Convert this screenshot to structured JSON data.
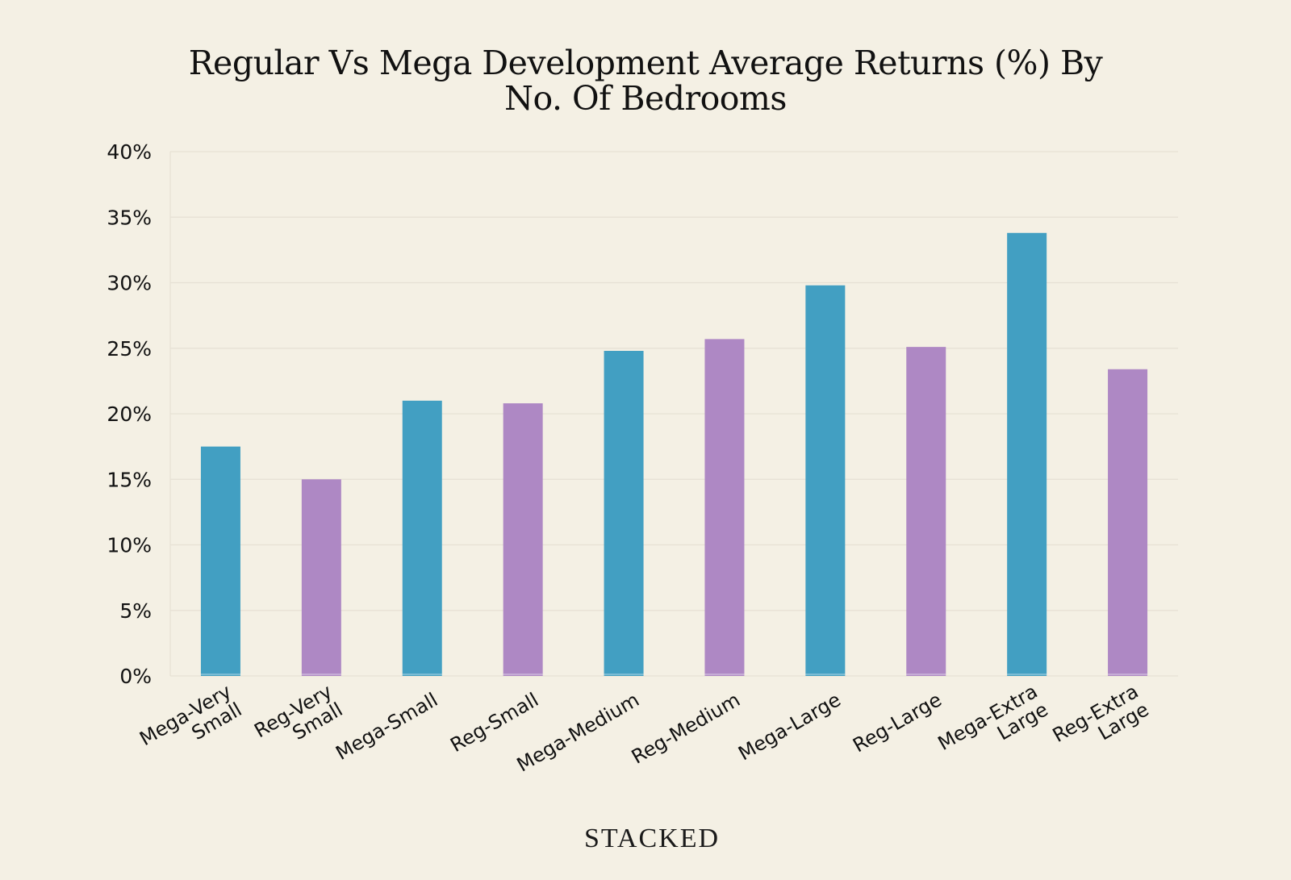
{
  "brand": "STACKED",
  "colors": {
    "background": "#f4f0e4",
    "mega": "#429fc2",
    "reg": "#ae88c4"
  },
  "chart_data": {
    "type": "bar",
    "title_lines": [
      "Regular Vs Mega Development Average Returns (%) By",
      "No. Of Bedrooms"
    ],
    "xlabel": "",
    "ylabel": "",
    "ylim": [
      0,
      40
    ],
    "yticks": [
      0,
      5,
      10,
      15,
      20,
      25,
      30,
      35,
      40
    ],
    "ytick_labels": [
      "0%",
      "5%",
      "10%",
      "15%",
      "20%",
      "25%",
      "30%",
      "35%",
      "40%"
    ],
    "grid": true,
    "categories": [
      [
        "Mega-Very",
        "Small"
      ],
      [
        "Reg-Very",
        "Small"
      ],
      [
        "Mega-Small"
      ],
      [
        "Reg-Small"
      ],
      [
        "Mega-Medium"
      ],
      [
        "Reg-Medium"
      ],
      [
        "Mega-Large"
      ],
      [
        "Reg-Large"
      ],
      [
        "Mega-Extra",
        "Large"
      ],
      [
        "Reg-Extra",
        "Large"
      ]
    ],
    "values": [
      17.5,
      15.0,
      21.0,
      20.8,
      24.8,
      25.7,
      29.8,
      25.1,
      33.8,
      23.4
    ],
    "bar_groups": [
      "mega",
      "reg",
      "mega",
      "reg",
      "mega",
      "reg",
      "mega",
      "reg",
      "mega",
      "reg"
    ]
  }
}
